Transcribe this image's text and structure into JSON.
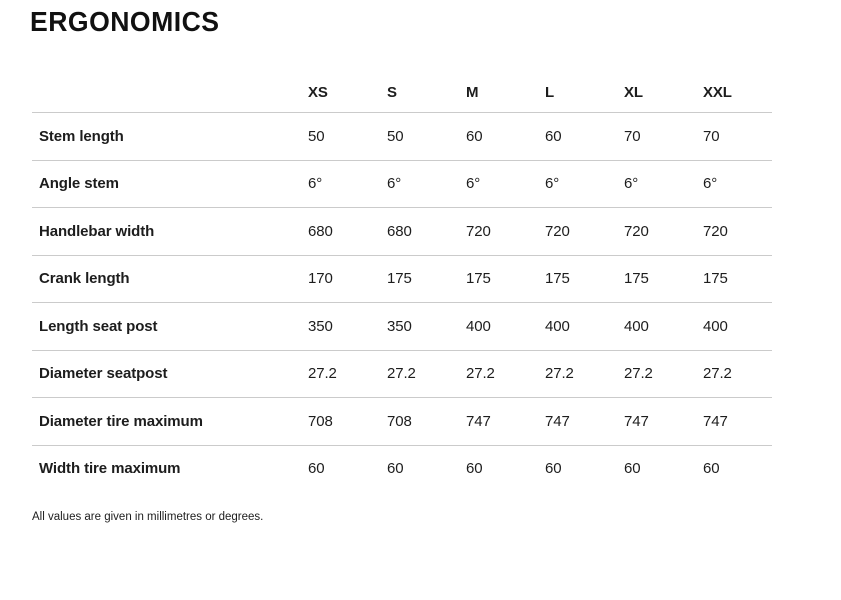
{
  "page": {
    "title": "ERGONOMICS",
    "footnote": "All values are given in millimetres or degrees."
  },
  "table": {
    "columns": [
      "XS",
      "S",
      "M",
      "L",
      "XL",
      "XXL"
    ],
    "rows": [
      {
        "label": "Stem length",
        "values": [
          "50",
          "50",
          "60",
          "60",
          "70",
          "70"
        ]
      },
      {
        "label": "Angle stem",
        "values": [
          "6°",
          "6°",
          "6°",
          "6°",
          "6°",
          "6°"
        ]
      },
      {
        "label": "Handlebar width",
        "values": [
          "680",
          "680",
          "720",
          "720",
          "720",
          "720"
        ]
      },
      {
        "label": "Crank length",
        "values": [
          "170",
          "175",
          "175",
          "175",
          "175",
          "175"
        ]
      },
      {
        "label": "Length seat post",
        "values": [
          "350",
          "350",
          "400",
          "400",
          "400",
          "400"
        ]
      },
      {
        "label": "Diameter seatpost",
        "values": [
          "27.2",
          "27.2",
          "27.2",
          "27.2",
          "27.2",
          "27.2"
        ]
      },
      {
        "label": "Diameter tire maximum",
        "values": [
          "708",
          "708",
          "747",
          "747",
          "747",
          "747"
        ]
      },
      {
        "label": "Width tire maximum",
        "values": [
          "60",
          "60",
          "60",
          "60",
          "60",
          "60"
        ]
      }
    ]
  },
  "colors": {
    "background": "#ffffff",
    "text": "#1d1d1d",
    "divider": "#cbcbcb"
  }
}
